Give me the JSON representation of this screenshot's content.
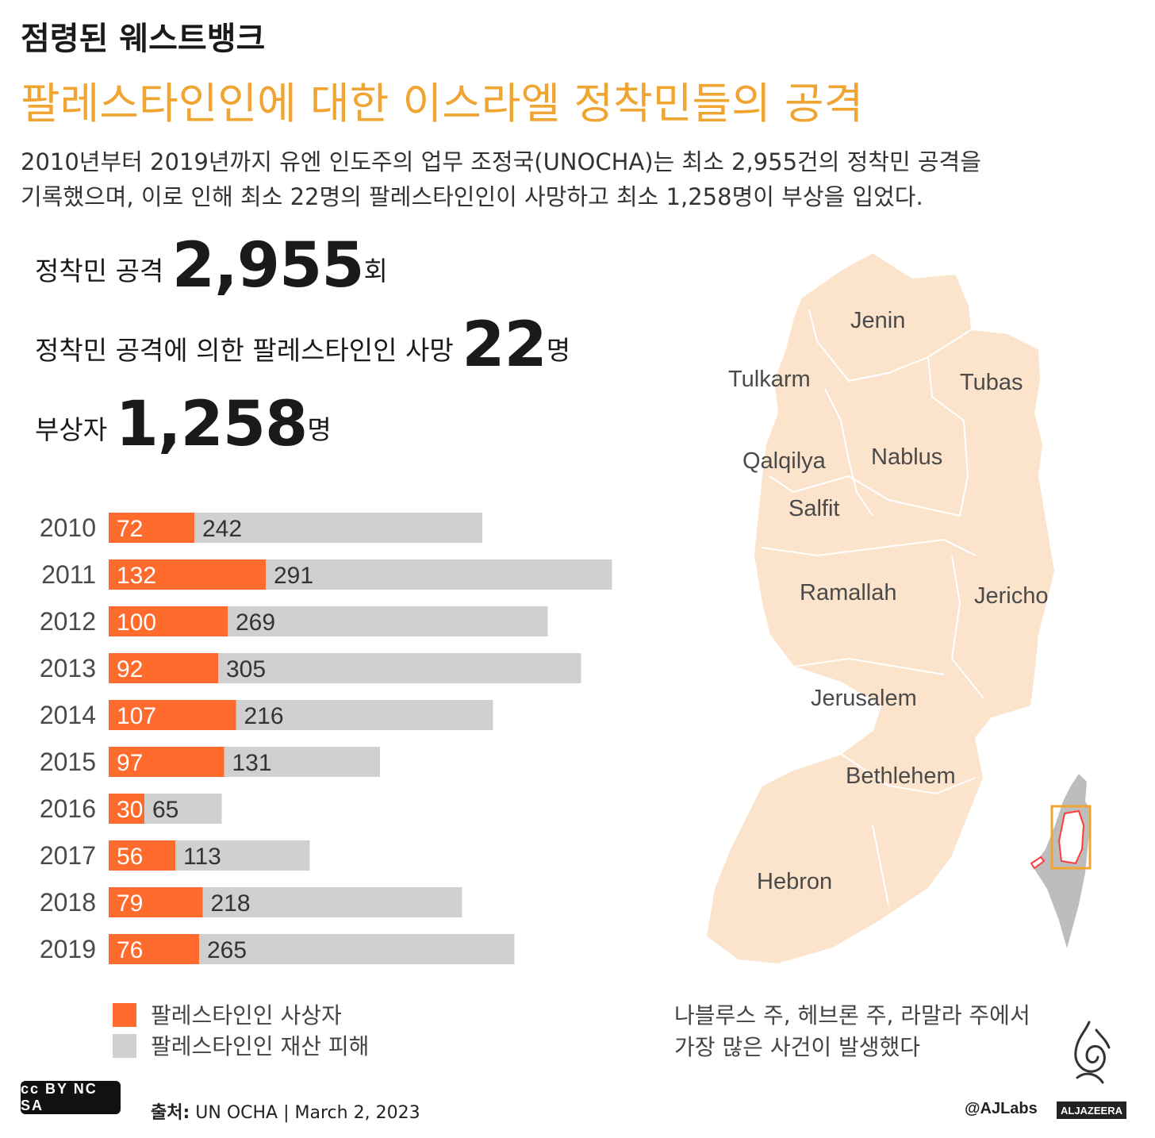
{
  "header": {
    "title": "점령된 웨스트뱅크",
    "subtitle": "팔레스타인인에 대한 이스라엘 정착민들의 공격",
    "intro_line1": "2010년부터 2019년까지 유엔 인도주의 업무 조정국(UNOCHA)는 최소 2,955건의 정착민 공격을",
    "intro_line2": "기록했으며, 이로 인해 최소 22명의 팔레스타인인이 사망하고 최소 1,258명이 부상을 입었다."
  },
  "stats": {
    "attacks": {
      "label": "정착민 공격",
      "value": "2,955",
      "unit": "회"
    },
    "deaths": {
      "label": "정착민 공격에 의한 팔레스타인인 사망",
      "value": "22",
      "unit": "명"
    },
    "injuries": {
      "label": "부상자",
      "value": "1,258",
      "unit": "명"
    }
  },
  "chart_data": {
    "type": "bar",
    "orientation": "horizontal",
    "stacked": true,
    "categories": [
      "2010",
      "2011",
      "2012",
      "2013",
      "2014",
      "2015",
      "2016",
      "2017",
      "2018",
      "2019"
    ],
    "series": [
      {
        "name": "팔레스타인인 사상자",
        "color": "#ff6b2c",
        "values": [
          72,
          132,
          100,
          92,
          107,
          97,
          30,
          56,
          79,
          76
        ]
      },
      {
        "name": "팔레스타인인 재산 피해",
        "color": "#d0d0d0",
        "values": [
          242,
          291,
          269,
          305,
          216,
          131,
          65,
          113,
          218,
          265
        ]
      }
    ],
    "title": "",
    "xlabel": "",
    "ylabel": "",
    "grid": false,
    "legend": "bottom-left"
  },
  "legend": {
    "casualties": "팔레스타인인 사상자",
    "property": "팔레스타인인 재산 피해"
  },
  "map": {
    "regions": [
      "Jenin",
      "Tulkarm",
      "Tubas",
      "Qalqilya",
      "Nablus",
      "Salfit",
      "Ramallah",
      "Jericho",
      "Jerusalem",
      "Bethlehem",
      "Hebron"
    ],
    "fill_color": "#fbe3cc",
    "inset_highlight_color": "#f0a532"
  },
  "note": {
    "line1": "나블루스 주, 헤브론 주, 라말라 주에서",
    "line2": "가장 많은 사건이 발생했다"
  },
  "footer": {
    "cc_badge": "cc BY NC SA",
    "source_label": "출처:",
    "source_value": "UN OCHA",
    "separator": "|",
    "date": "March 2, 2023",
    "handle": "@AJLabs",
    "brand": "ALJAZEERA"
  },
  "colors": {
    "accent_orange": "#f0a532",
    "bar_casualty": "#ff6b2c",
    "bar_property": "#d0d0d0"
  }
}
